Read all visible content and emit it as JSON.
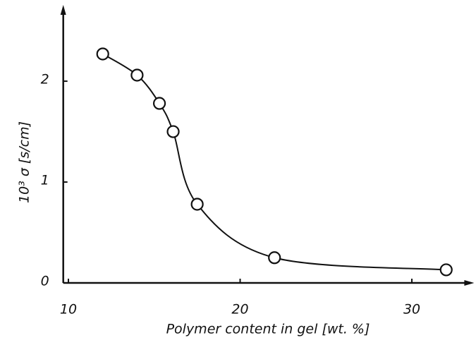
{
  "chart_data": {
    "type": "scatter",
    "x_label": "Polymer content in gel   [wt. %]",
    "y_label": "10³ σ   [s/cm]",
    "series": [
      {
        "color": "#111111",
        "x": [
          12.0,
          14.0,
          15.3,
          16.1,
          17.5,
          22.0,
          32.0
        ],
        "values": [
          2.27,
          2.06,
          1.78,
          1.5,
          0.78,
          0.25,
          0.13
        ]
      }
    ],
    "xlim": [
      9.7,
      33.3
    ],
    "xticks": [
      10,
      20,
      30
    ],
    "ylim": [
      0,
      2.7
    ],
    "yticks": [
      0,
      1,
      2
    ],
    "grid": false,
    "smooth_curve": true
  }
}
